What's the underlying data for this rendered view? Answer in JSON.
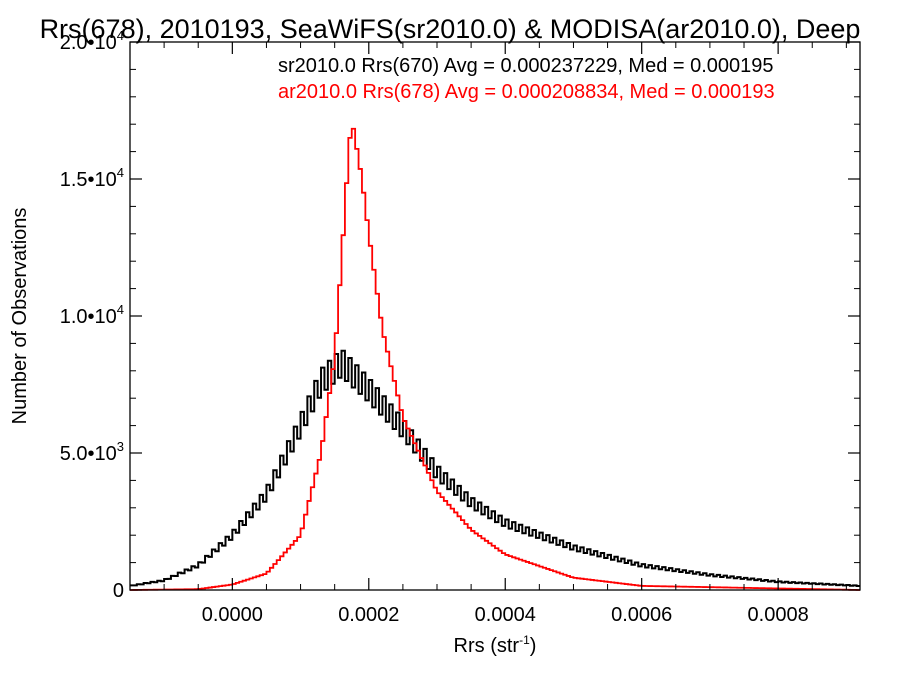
{
  "chart_data": {
    "type": "histogram",
    "title": "Rrs(678), 2010193, SeaWiFS(sr2010.0) & MODISA(ar2010.0), Deep",
    "xlabel": "Rrs (str",
    "xlabel_sup": "-1",
    "xlabel_end": ")",
    "ylabel": "Number of Observations",
    "xlim": [
      -0.00015,
      0.00092
    ],
    "ylim": [
      0,
      20000
    ],
    "x_ticks": [
      {
        "value": 0.0,
        "label": "0.0000"
      },
      {
        "value": 0.0002,
        "label": "0.0002"
      },
      {
        "value": 0.0004,
        "label": "0.0004"
      },
      {
        "value": 0.0006,
        "label": "0.0006"
      },
      {
        "value": 0.0008,
        "label": "0.0008"
      }
    ],
    "y_ticks": [
      {
        "value": 0,
        "mant": "0",
        "exp": ""
      },
      {
        "value": 5000,
        "mant": "5.0•10",
        "exp": "3"
      },
      {
        "value": 10000,
        "mant": "1.0•10",
        "exp": "4"
      },
      {
        "value": 15000,
        "mant": "1.5•10",
        "exp": "4"
      },
      {
        "value": 20000,
        "mant": "2.0•10",
        "exp": "4"
      }
    ],
    "legend_placement": "top-right",
    "series": [
      {
        "name": "sr2010.0 Rrs(670) Avg = 0.000237229, Med = 0.000195",
        "color": "#000000",
        "anchors_x": [
          -0.00015,
          -0.0001,
          -5e-05,
          0.0,
          5e-05,
          0.0001,
          0.00013,
          0.00016,
          0.00018,
          0.0002,
          0.00025,
          0.0003,
          0.00035,
          0.0004,
          0.0005,
          0.0006,
          0.0007,
          0.0008,
          0.00092
        ],
        "anchors_y": [
          150,
          350,
          900,
          2000,
          3500,
          6000,
          7600,
          8300,
          7800,
          7300,
          5900,
          4300,
          3200,
          2450,
          1550,
          900,
          550,
          300,
          150
        ]
      },
      {
        "name": "ar2010.0 Rrs(678) Avg = 0.000208834, Med = 0.000193",
        "color": "#ff0000",
        "anchors_x": [
          -0.00015,
          -5e-05,
          0.0,
          5e-05,
          0.0001,
          0.00013,
          0.00015,
          0.00016,
          0.00017,
          0.000175,
          0.00019,
          0.0002,
          0.00022,
          0.00025,
          0.0003,
          0.00035,
          0.0004,
          0.0005,
          0.0006,
          0.00092
        ],
        "anchors_y": [
          0,
          30,
          200,
          600,
          2000,
          5000,
          8500,
          12000,
          15800,
          17200,
          15000,
          13000,
          9500,
          6300,
          3600,
          2200,
          1300,
          450,
          150,
          0
        ]
      }
    ]
  }
}
